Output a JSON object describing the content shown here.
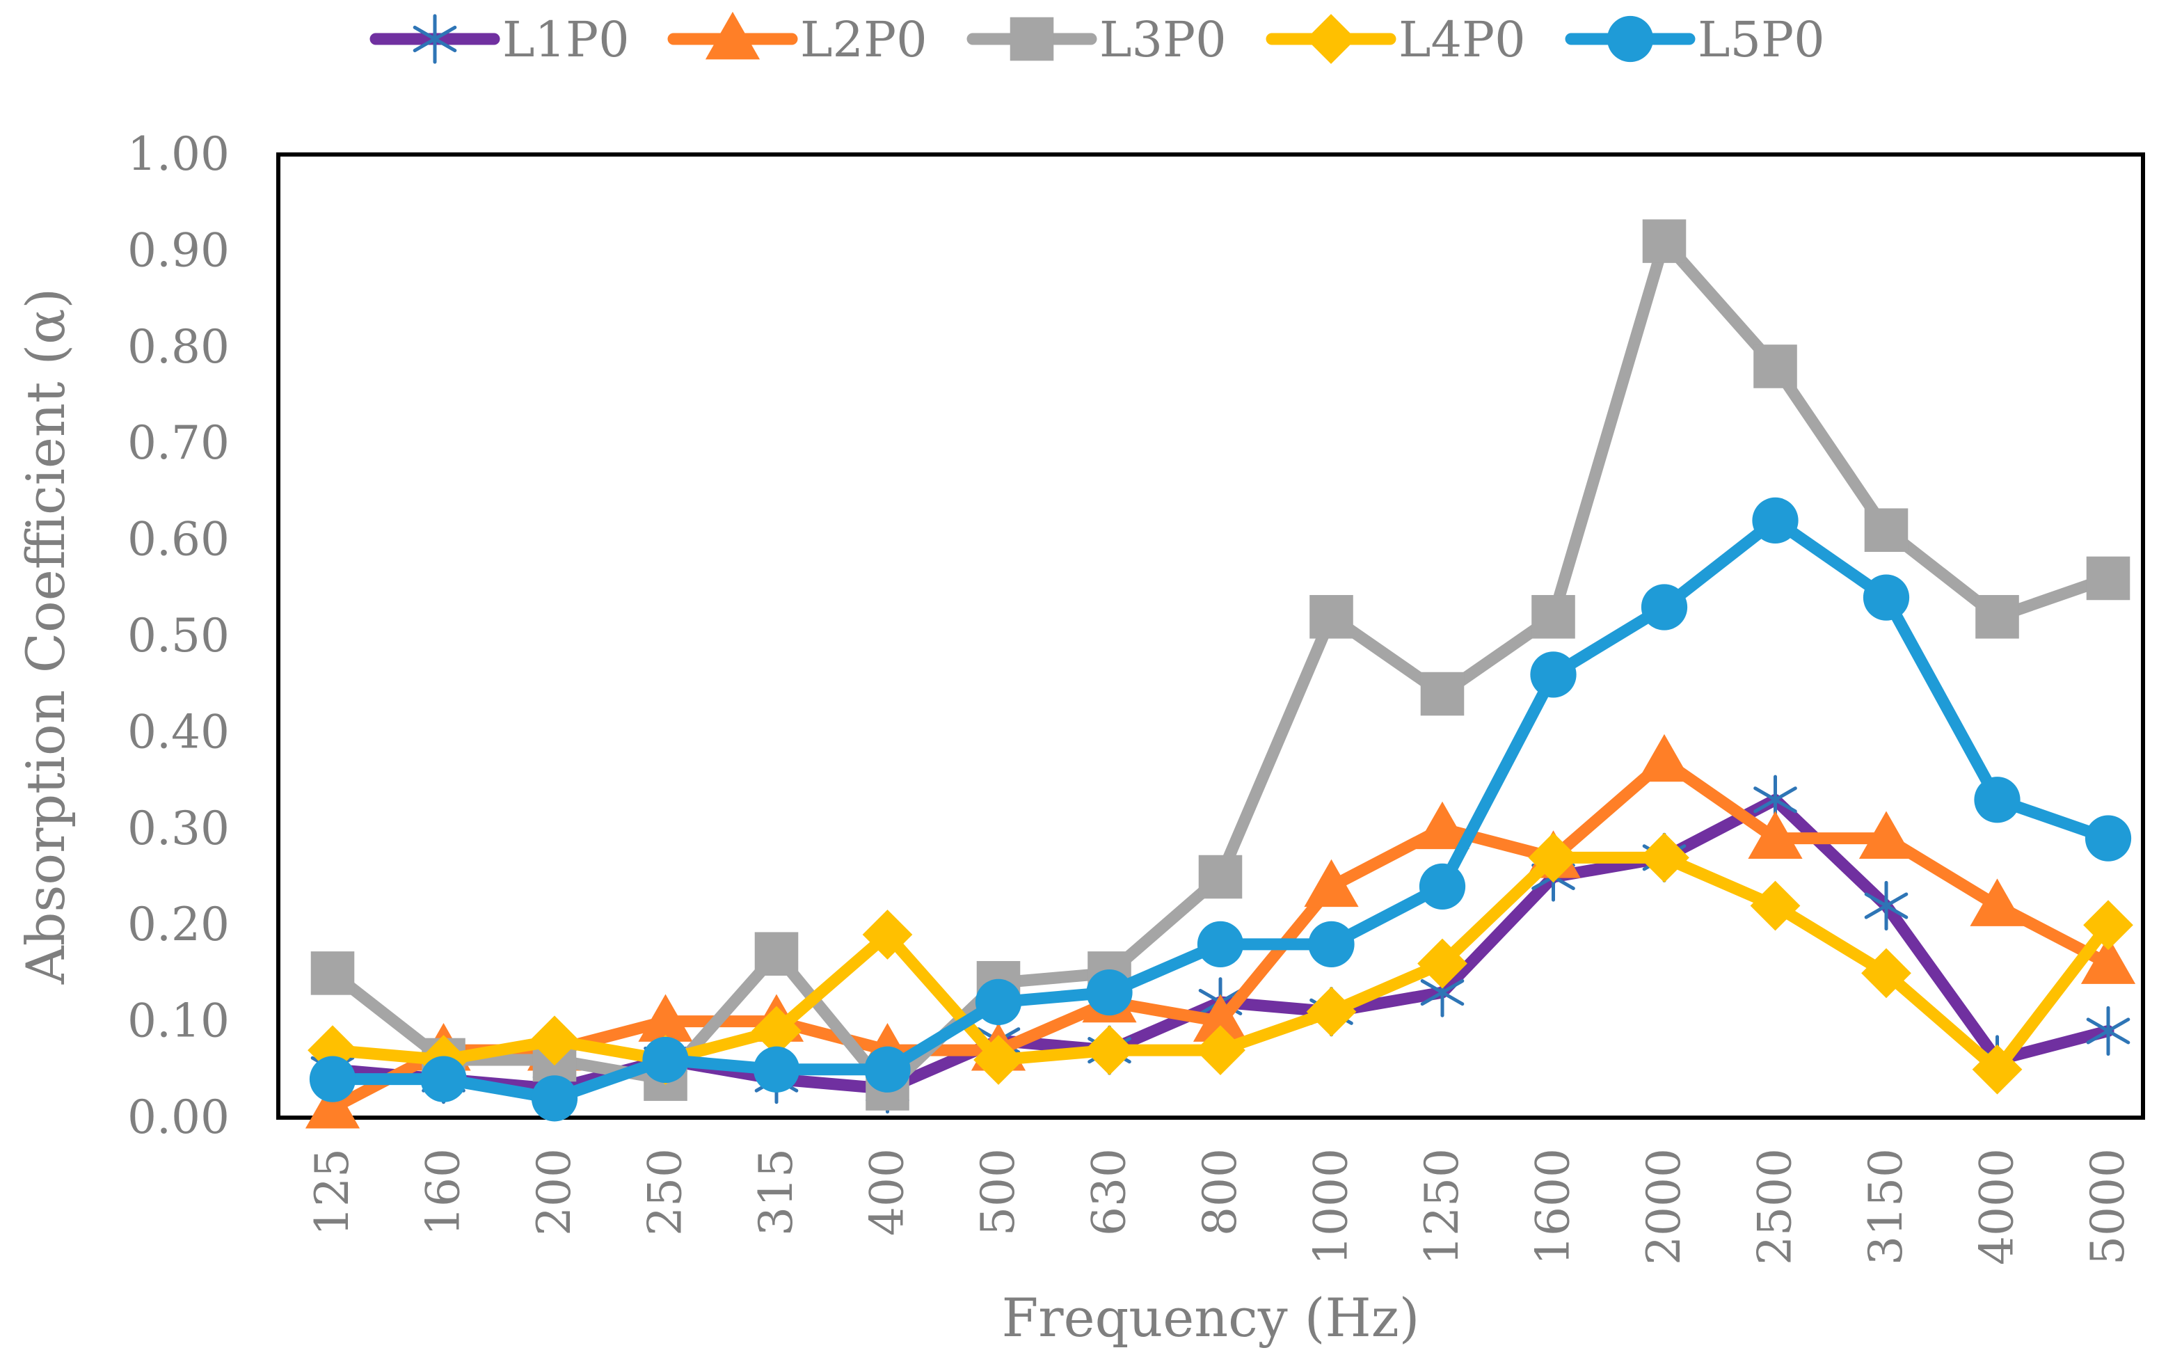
{
  "chart_data": {
    "type": "line",
    "xlabel": "Frequency (Hz)",
    "ylabel": "Absorption Coefficient (α)",
    "categories": [
      "125",
      "160",
      "200",
      "250",
      "315",
      "400",
      "500",
      "630",
      "800",
      "1000",
      "1250",
      "1600",
      "2000",
      "2500",
      "3150",
      "4000",
      "5000"
    ],
    "ylim": [
      0,
      1.0
    ],
    "yticks": [
      "0.00",
      "0.10",
      "0.20",
      "0.30",
      "0.40",
      "0.50",
      "0.60",
      "0.70",
      "0.80",
      "0.90",
      "1.00"
    ],
    "grid": false,
    "legend_position": "top",
    "series": [
      {
        "name": "L1P0",
        "color": "#7030a0",
        "marker": "asterisk",
        "marker_color": "#2e75b6",
        "values": [
          0.05,
          0.04,
          0.03,
          0.06,
          0.04,
          0.03,
          0.08,
          0.07,
          0.12,
          0.11,
          0.13,
          0.25,
          0.27,
          0.33,
          0.22,
          0.06,
          0.09
        ]
      },
      {
        "name": "L2P0",
        "color": "#ff7f27",
        "marker": "triangle",
        "marker_color": "#ff7f27",
        "values": [
          0.01,
          0.07,
          0.07,
          0.1,
          0.1,
          0.07,
          0.07,
          0.12,
          0.1,
          0.24,
          0.3,
          0.27,
          0.37,
          0.29,
          0.29,
          0.22,
          0.16
        ]
      },
      {
        "name": "L3P0",
        "color": "#a5a5a5",
        "marker": "square",
        "marker_color": "#a5a5a5",
        "values": [
          0.15,
          0.06,
          0.06,
          0.04,
          0.17,
          0.03,
          0.14,
          0.15,
          0.25,
          0.52,
          0.44,
          0.52,
          0.91,
          0.78,
          0.61,
          0.52,
          0.56
        ]
      },
      {
        "name": "L4P0",
        "color": "#ffc000",
        "marker": "diamond",
        "marker_color": "#ffc000",
        "values": [
          0.07,
          0.06,
          0.08,
          0.06,
          0.09,
          0.19,
          0.06,
          0.07,
          0.07,
          0.11,
          0.16,
          0.27,
          0.27,
          0.22,
          0.15,
          0.05,
          0.2
        ]
      },
      {
        "name": "L5P0",
        "color": "#1f9bd7",
        "marker": "circle",
        "marker_color": "#1f9bd7",
        "values": [
          0.04,
          0.04,
          0.02,
          0.06,
          0.05,
          0.05,
          0.12,
          0.13,
          0.18,
          0.18,
          0.24,
          0.46,
          0.53,
          0.62,
          0.54,
          0.33,
          0.29
        ]
      }
    ]
  }
}
